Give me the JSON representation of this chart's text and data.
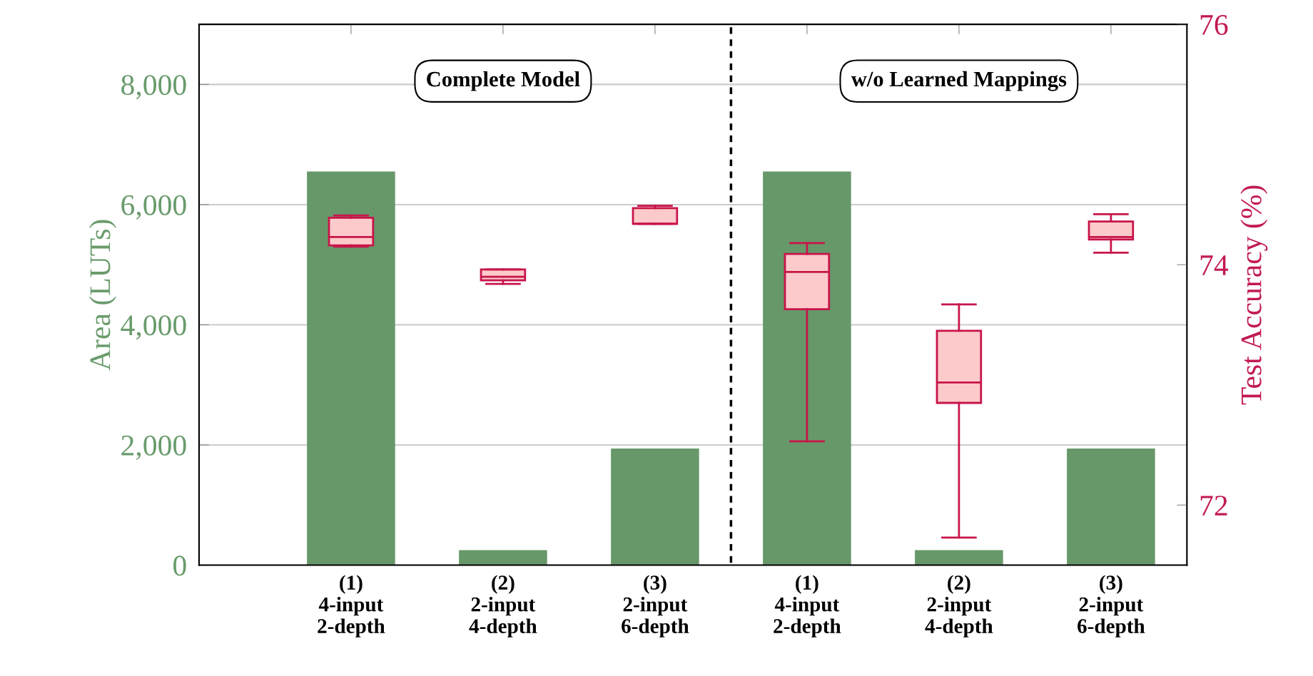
{
  "chart_data": {
    "type": "bar",
    "ylabel": "Area (LUTs)",
    "y2label": "Test Accuracy (%)",
    "categories": [
      "(1)\n4-input\n2-depth",
      "(2)\n2-input\n4-depth",
      "(3)\n2-input\n6-depth",
      "(1)\n4-input\n2-depth",
      "(2)\n2-input\n4-depth",
      "(3)\n2-input\n6-depth"
    ],
    "series": [
      {
        "color": "#67986a",
        "values": [
          6550,
          250,
          1940,
          6550,
          250,
          1940
        ]
      },
      {
        "type": "box",
        "axis": "y2",
        "color": "#c8144a",
        "boxes": [
          {
            "low": 74.15,
            "q1": 74.16,
            "median": 74.23,
            "q3": 74.39,
            "high": 74.41
          },
          {
            "low": 73.84,
            "q1": 73.87,
            "median": 73.9,
            "q3": 73.96,
            "high": 73.96
          },
          {
            "low": 74.34,
            "q1": 74.34,
            "median": 74.34,
            "q3": 74.47,
            "high": 74.49
          },
          {
            "low": 72.53,
            "q1": 73.63,
            "median": 73.94,
            "q3": 74.09,
            "high": 74.18
          },
          {
            "low": 71.73,
            "q1": 72.85,
            "median": 73.02,
            "q3": 73.45,
            "high": 73.67
          },
          {
            "low": 74.1,
            "q1": 74.21,
            "median": 74.23,
            "q3": 74.36,
            "high": 74.42
          }
        ]
      }
    ],
    "ylim": [
      0,
      9000
    ],
    "yticks": [
      0,
      {
        "value": 2000,
        "label": "2,000"
      },
      {
        "value": 4000,
        "label": "4,000"
      },
      {
        "value": 6000,
        "label": "6,000"
      },
      {
        "value": 8000,
        "label": "8,000"
      }
    ],
    "y2lim": [
      71.5,
      76
    ],
    "y2ticks": [
      72,
      74,
      76
    ],
    "grid": "y",
    "annotations": [
      "Complete Model",
      "w/o Learned Mappings"
    ]
  }
}
